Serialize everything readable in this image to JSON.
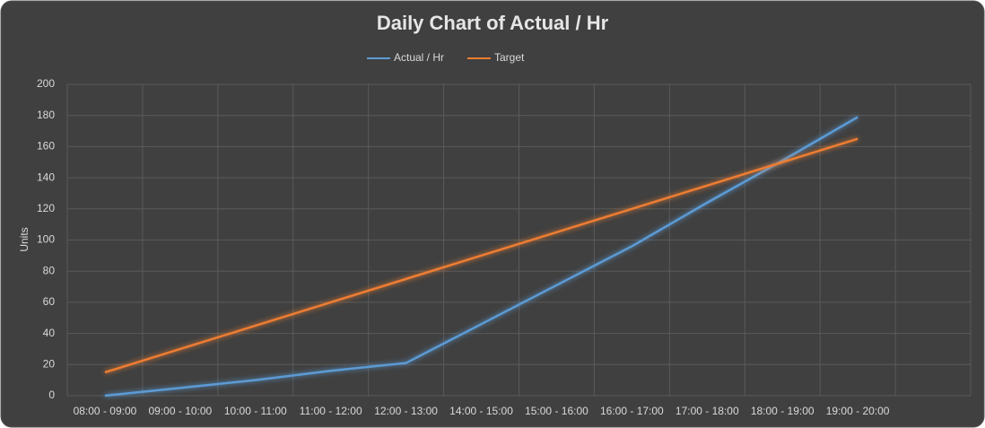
{
  "chart_data": {
    "type": "line",
    "title": "Daily Chart of Actual / Hr",
    "y_label": "Units",
    "categories": [
      "08:00 - 09:00",
      "09:00 - 10:00",
      "10:00 - 11:00",
      "11:00 - 12:00",
      "12:00 - 13:00",
      "14:00 - 15:00",
      "15:00 - 16:00",
      "16:00 - 17:00",
      "17:00 - 18:00",
      "18:00 - 19:00",
      "19:00 - 20:00",
      null
    ],
    "series": [
      {
        "name": "Actual / Hr",
        "color": "#5b9bd5",
        "values": [
          0,
          5,
          10,
          16,
          21,
          46,
          71,
          96,
          124,
          151,
          179,
          null
        ]
      },
      {
        "name": "Target",
        "color": "#ed7d31",
        "values": [
          15,
          30,
          45,
          60,
          75,
          90,
          105,
          120,
          135,
          150,
          165,
          null
        ]
      }
    ],
    "ylim": [
      0,
      200
    ],
    "yticks": [
      0,
      20,
      40,
      60,
      80,
      100,
      120,
      140,
      160,
      180,
      200
    ],
    "grid": true,
    "legend": "top"
  }
}
